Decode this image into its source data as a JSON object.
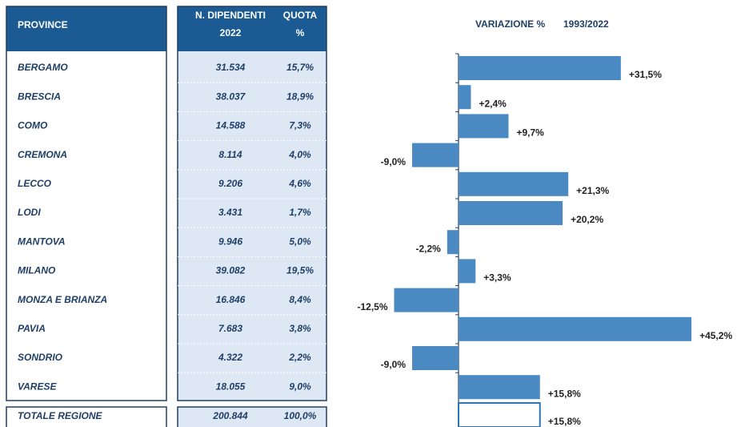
{
  "table": {
    "header": {
      "province": "PROVINCE",
      "employees": [
        "N. DIPENDENTI",
        "2022"
      ],
      "share": [
        "QUOTA",
        "%"
      ]
    },
    "rows": [
      [
        "BERGAMO",
        "31.534",
        "15,7%"
      ],
      [
        "BRESCIA",
        "38.037",
        "18,9%"
      ],
      [
        "COMO",
        "14.588",
        "7,3%"
      ],
      [
        "CREMONA",
        "8.114",
        "4,0%"
      ],
      [
        "LECCO",
        "9.206",
        "4,6%"
      ],
      [
        "LODI",
        "3.431",
        "1,7%"
      ],
      [
        "MANTOVA",
        "9.946",
        "5,0%"
      ],
      [
        "MILANO",
        "39.082",
        "19,5%"
      ],
      [
        "MONZA E BRIANZA",
        "16.846",
        "8,4%"
      ],
      [
        "PAVIA",
        "7.683",
        "3,8%"
      ],
      [
        "SONDRIO",
        "4.322",
        "2,2%"
      ],
      [
        "VARESE",
        "18.055",
        "9,0%"
      ]
    ],
    "total": [
      "TOTALE REGIONE",
      "200.844",
      "100,0%"
    ]
  },
  "chart_data": {
    "type": "bar",
    "orientation": "horizontal",
    "title": "VARIAZIONE %",
    "subtitle": "1993/2022",
    "values": [
      31.5,
      2.4,
      9.7,
      -9.0,
      21.3,
      20.2,
      -2.2,
      3.3,
      -12.5,
      45.2,
      -9.0,
      15.8
    ],
    "value_labels": [
      "+31,5%",
      "+2,4%",
      "+9,7%",
      "-9,0%",
      "+21,3%",
      "+20,2%",
      "-2,2%",
      "+3,3%",
      "-12,5%",
      "+45,2%",
      "-9,0%",
      "+15,8%"
    ],
    "total_value": 15.8,
    "total_label": "+15,8%",
    "color": "#4a89c2",
    "total_fill": "#ffffff",
    "total_stroke": "#2e75b6",
    "xlim": [
      -15,
      50
    ]
  }
}
